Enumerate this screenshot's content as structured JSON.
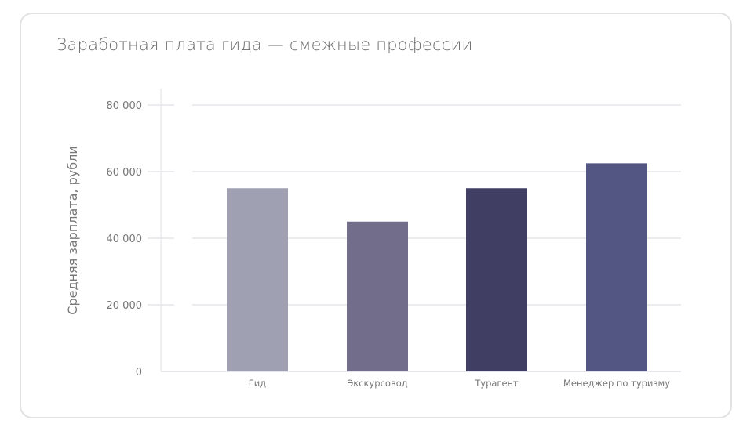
{
  "chart_data": {
    "type": "bar",
    "title": "Заработная плата гида — смежные профессии",
    "xlabel": "",
    "ylabel": "Средняя зарплата, рубли",
    "categories": [
      "Гид",
      "Экскурсовод",
      "Турагент",
      "Менеджер по туризму"
    ],
    "values": [
      55000,
      45000,
      55000,
      62500
    ],
    "colors": [
      "#9fa0b1",
      "#716d8a",
      "#403f63",
      "#535583"
    ],
    "ylim": [
      0,
      80000
    ],
    "yticks": [
      0,
      20000,
      40000,
      60000,
      80000
    ],
    "ytick_labels": [
      "0",
      "20 000",
      "40 000",
      "60 000",
      "80 000"
    ],
    "grid": true
  }
}
